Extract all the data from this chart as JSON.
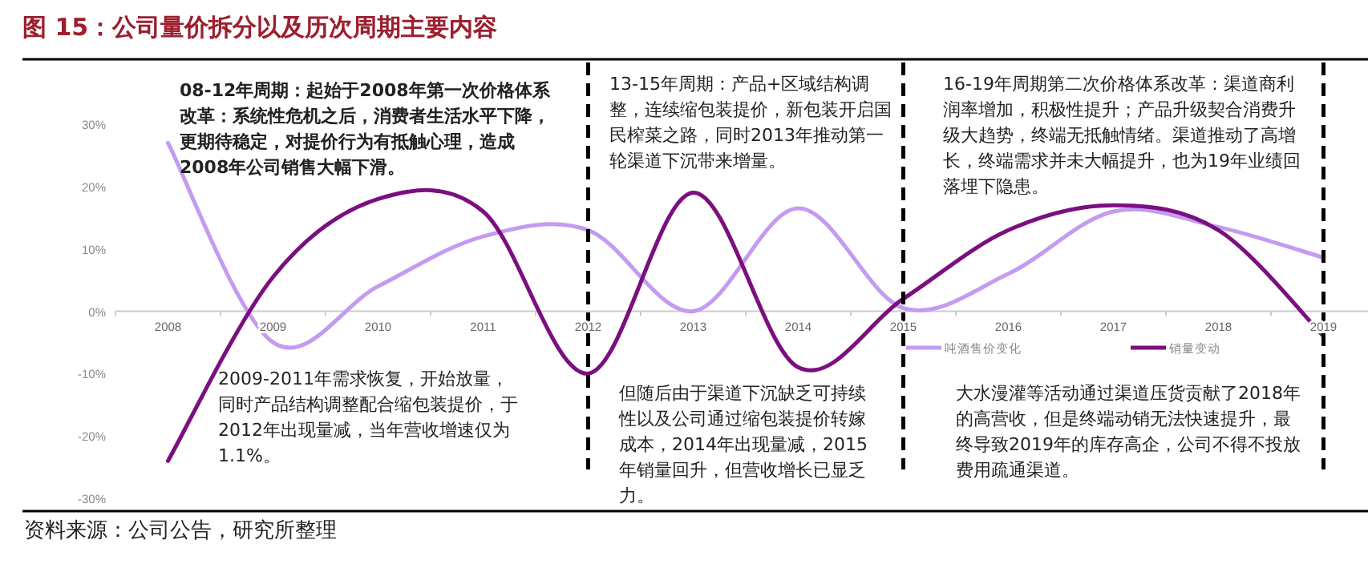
{
  "chart_data": {
    "type": "line",
    "title": "图 15：公司量价拆分以及历次周期主要内容",
    "categories": [
      "2008",
      "2009",
      "2010",
      "2011",
      "2012",
      "2013",
      "2014",
      "2015",
      "2016",
      "2017",
      "2018",
      "2019"
    ],
    "series": [
      {
        "name": "吨酒售价变化",
        "color": "#c39bf0",
        "values": [
          27,
          -5,
          4,
          12,
          13,
          0,
          16.5,
          0.5,
          6,
          16,
          13.5,
          8.6
        ]
      },
      {
        "name": "销量变动",
        "color": "#7b0f7f",
        "values": [
          -24,
          5.5,
          18,
          16,
          -10,
          19,
          -9,
          2,
          13,
          17,
          13,
          -4
        ]
      }
    ],
    "ylim": [
      -30,
      30
    ],
    "yticks": [
      {
        "value": -30,
        "label": "-30%"
      },
      {
        "value": -20,
        "label": "-20%"
      },
      {
        "value": -10,
        "label": "-10%"
      },
      {
        "value": 0,
        "label": "0%"
      },
      {
        "value": 10,
        "label": "10%"
      },
      {
        "value": 20,
        "label": "20%"
      },
      {
        "value": 30,
        "label": "30%"
      }
    ],
    "ref_lines": [
      {
        "axis": "x",
        "value": "2012",
        "color": "#000000",
        "line_style": "dashed"
      },
      {
        "axis": "x",
        "value": "2015",
        "color": "#000000",
        "line_style": "dashed"
      },
      {
        "axis": "x",
        "value": "2019",
        "color": "#000000",
        "line_style": "dashed"
      }
    ],
    "annotations": [
      "08-12年周期：起始于2008年第一次价格体系改革：系统性危机之后，消费者生活水平下降，更期待稳定，对提价行为有抵触心理，造成2008年公司销售大幅下滑。",
      "13-15年周期：产品+区域结构调整，连续缩包装提价，新包装开启国民榨菜之路，同时2013年推动第一轮渠道下沉带来增量。",
      "16-19年周期第二次价格体系改革：渠道商利润率增加，积极性提升；产品升级契合消费升级大趋势，终端无抵触情绪。渠道推动了高增长，终端需求并未大幅提升，也为19年业绩回落埋下隐患。",
      "2009-2011年需求恢复，开始放量，同时产品结构调整配合缩包装提价，于2012年出现量减，当年营收增速仅为1.1%。",
      "但随后由于渠道下沉缺乏可持续性以及公司通过缩包装提价转嫁成本，2014年出现量减，2015年销量回升，但营收增长已显乏力。",
      "大水漫灌等活动通过渠道压货贡献了2018年的高营收，但是终端动销无法快速提升，最终导致2019年的库存高企，公司不得不投放费用疏通渠道。",
      "资料来源：公司公告，研究所整理"
    ],
    "legend": "bottom",
    "marker": "none",
    "line_style": "solid"
  }
}
